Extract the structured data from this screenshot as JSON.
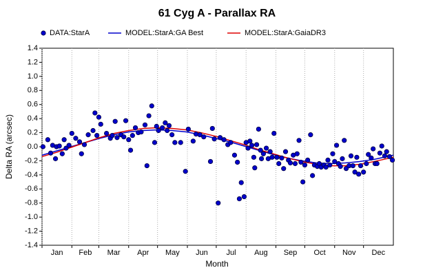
{
  "chart_data": {
    "type": "scatter",
    "title": "61 Cyg A - Parallax RA",
    "x_label": "Month",
    "y_label": "Delta RA (arcsec)",
    "xlim": [
      0,
      365
    ],
    "xticks": [
      {
        "value": 0,
        "label": "Jan"
      },
      {
        "value": 31,
        "label": "Feb"
      },
      {
        "value": 59,
        "label": "Mar"
      },
      {
        "value": 90,
        "label": "Apr"
      },
      {
        "value": 120,
        "label": "May"
      },
      {
        "value": 151,
        "label": "Jun"
      },
      {
        "value": 181,
        "label": "Jul"
      },
      {
        "value": 212,
        "label": "Aug"
      },
      {
        "value": 243,
        "label": "Sep"
      },
      {
        "value": 273,
        "label": "Oct"
      },
      {
        "value": 304,
        "label": "Nov"
      },
      {
        "value": 334,
        "label": "Dec"
      }
    ],
    "ylim": [
      -1.4,
      1.4
    ],
    "yticks": [
      -1.4,
      -1.2,
      {
        "value": -1,
        "label": "-1.0"
      },
      -0.8,
      -0.6,
      -0.4,
      -0.2,
      {
        "value": 0,
        "label": "0.0"
      },
      0.2,
      0.4,
      0.6,
      0.8,
      {
        "value": 1,
        "label": "1.0"
      },
      1.2,
      1.4
    ],
    "grid": "x",
    "series": [
      {
        "name": "DATA:StarA",
        "type": "scatter",
        "color": "#0000cc",
        "x": [
          1,
          6,
          9,
          11,
          14,
          15,
          18,
          21,
          23,
          25,
          28,
          31,
          35,
          39,
          41,
          44,
          48,
          53,
          55,
          57,
          59,
          61,
          67,
          71,
          73,
          76,
          78,
          82,
          85,
          87,
          90,
          92,
          94,
          97,
          100,
          103,
          107,
          109,
          111,
          114,
          117,
          119,
          121,
          125,
          128,
          130,
          132,
          135,
          138,
          144,
          149,
          152,
          157,
          160,
          164,
          168,
          175,
          177,
          179,
          183,
          185,
          189,
          193,
          196,
          200,
          203,
          205,
          207,
          210,
          212,
          214,
          216,
          218,
          220,
          221,
          223,
          225,
          227,
          228,
          230,
          233,
          235,
          237,
          239,
          241,
          244,
          246,
          249,
          251,
          253,
          256,
          258,
          261,
          263,
          265,
          267,
          269,
          271,
          273,
          276,
          279,
          281,
          283,
          286,
          288,
          290,
          293,
          295,
          297,
          299,
          302,
          304,
          306,
          308,
          310,
          312,
          314,
          316,
          319,
          321,
          323,
          325,
          327,
          329,
          331,
          334,
          337,
          339,
          342,
          344,
          346,
          348,
          351,
          353,
          356,
          358,
          361,
          364
        ],
        "values": [
          0.0,
          0.1,
          -0.09,
          0.02,
          -0.17,
          0.0,
          0.01,
          -0.1,
          0.1,
          -0.02,
          0.02,
          0.19,
          0.12,
          0.07,
          -0.1,
          0.03,
          0.17,
          0.23,
          0.48,
          0.16,
          0.42,
          0.32,
          0.19,
          0.12,
          0.16,
          0.36,
          0.13,
          0.17,
          0.14,
          0.37,
          0.1,
          -0.05,
          0.16,
          0.27,
          0.2,
          0.21,
          0.31,
          -0.27,
          0.44,
          0.58,
          0.06,
          0.29,
          0.23,
          0.27,
          0.34,
          0.23,
          0.3,
          0.17,
          0.06,
          0.06,
          -0.35,
          0.25,
          0.08,
          0.18,
          0.17,
          0.14,
          -0.21,
          0.26,
          0.11,
          -0.8,
          0.13,
          0.1,
          0.03,
          0.06,
          -0.12,
          -0.22,
          -0.74,
          -0.51,
          -0.71,
          0.06,
          -0.02,
          0.08,
          0.02,
          -0.15,
          -0.3,
          0.03,
          0.25,
          -0.05,
          -0.17,
          -0.1,
          -0.02,
          -0.17,
          -0.07,
          -0.15,
          0.19,
          -0.15,
          -0.24,
          -0.16,
          -0.31,
          -0.07,
          -0.19,
          -0.23,
          -0.12,
          -0.24,
          -0.1,
          0.09,
          -0.22,
          -0.5,
          -0.26,
          -0.19,
          0.17,
          -0.41,
          -0.26,
          -0.28,
          -0.24,
          -0.29,
          -0.26,
          -0.29,
          -0.19,
          -0.26,
          -0.1,
          -0.21,
          0.02,
          -0.24,
          -0.28,
          -0.17,
          0.09,
          -0.31,
          -0.27,
          -0.13,
          -0.27,
          -0.36,
          -0.15,
          -0.39,
          -0.27,
          -0.36,
          -0.24,
          -0.11,
          -0.16,
          -0.03,
          -0.24,
          -0.24,
          -0.09,
          0.01,
          -0.13,
          -0.07,
          -0.14,
          -0.19
        ]
      },
      {
        "name": "MODEL:StarA:GA Best",
        "type": "line",
        "color": "#0000cc",
        "x": [
          0,
          15,
          30,
          45,
          60,
          75,
          90,
          105,
          120,
          135,
          150,
          165,
          180,
          195,
          210,
          225,
          240,
          255,
          270,
          285,
          300,
          315,
          330,
          345,
          365
        ],
        "values": [
          -0.12,
          -0.06,
          0,
          0.06,
          0.12,
          0.17,
          0.21,
          0.23,
          0.24,
          0.23,
          0.21,
          0.17,
          0.12,
          0.07,
          0.01,
          -0.05,
          -0.11,
          -0.16,
          -0.2,
          -0.23,
          -0.24,
          -0.23,
          -0.21,
          -0.18,
          -0.12
        ]
      },
      {
        "name": "MODEL:StarA:GaiaDR3",
        "type": "line",
        "color": "#dd0000",
        "x": [
          0,
          15,
          30,
          45,
          60,
          75,
          90,
          105,
          120,
          135,
          150,
          165,
          180,
          195,
          210,
          225,
          240,
          255,
          270,
          285,
          300,
          315,
          330,
          345,
          365
        ],
        "values": [
          -0.14,
          -0.08,
          -0.01,
          0.06,
          0.13,
          0.19,
          0.23,
          0.26,
          0.27,
          0.26,
          0.24,
          0.2,
          0.15,
          0.09,
          0.03,
          -0.04,
          -0.1,
          -0.16,
          -0.21,
          -0.25,
          -0.27,
          -0.27,
          -0.25,
          -0.21,
          -0.15
        ]
      }
    ]
  }
}
